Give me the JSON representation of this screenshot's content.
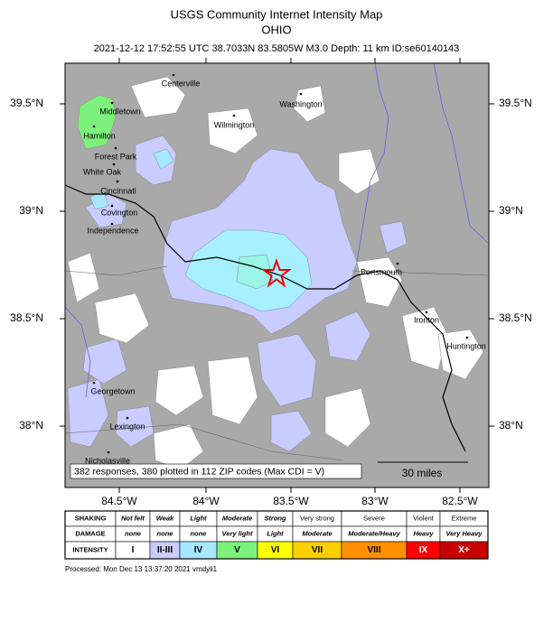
{
  "header": {
    "title": "USGS Community Internet Intensity Map",
    "region": "OHIO",
    "event": "2021-12-12 17:52:55 UTC 38.7033N 83.5805W M3.0 Depth: 11 km ID:se60140143"
  },
  "map": {
    "lat_labels": [
      "39.5°N",
      "39°N",
      "38.5°N",
      "38°N"
    ],
    "lon_labels": [
      "84.5°W",
      "84°W",
      "83.5°W",
      "83°W",
      "82.5°W"
    ],
    "cities": [
      "Centerville",
      "Middletown",
      "Washington",
      "Wilmington",
      "Hamilton",
      "Forest Park",
      "White Oak",
      "Cincinnati",
      "Covington",
      "Independence",
      "Portsmouth",
      "Ironton",
      "Huntington",
      "Georgetown",
      "Lexington",
      "Nicholasville"
    ],
    "stats": "382 responses, 380 plotted in 112 ZIP codes (Max CDI = V)",
    "scale": "30 miles"
  },
  "legend": {
    "row_labels": [
      "SHAKING",
      "DAMAGE",
      "INTENSITY"
    ],
    "shaking": [
      "Not felt",
      "Weak",
      "Light",
      "Moderate",
      "Strong",
      "Very strong",
      "Severe",
      "Violent",
      "Extreme"
    ],
    "damage": [
      "none",
      "none",
      "none",
      "Very light",
      "Light",
      "Moderate",
      "Moderate/Heavy",
      "Heavy",
      "Very Heavy"
    ],
    "intensity": [
      "I",
      "II-III",
      "IV",
      "V",
      "VI",
      "VII",
      "VIII",
      "IX",
      "X+"
    ]
  },
  "footer": "Processed: Mon Dec 13 13:37:20 2021 vmdyli1"
}
